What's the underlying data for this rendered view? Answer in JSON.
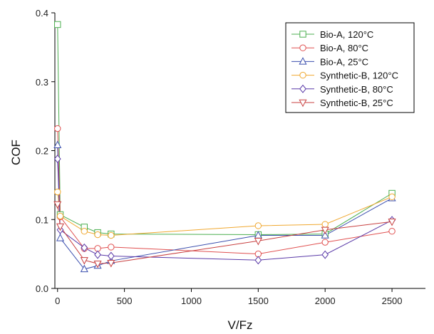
{
  "chart_data": {
    "type": "line",
    "xlabel": "V/Fz",
    "ylabel": "COF",
    "xlim": [
      -20,
      2750
    ],
    "ylim": [
      0,
      0.4
    ],
    "x_ticks": [
      0,
      500,
      1000,
      1500,
      2000,
      2500
    ],
    "x_tick_labels": [
      "0",
      "500",
      "1000",
      "1500",
      "2000",
      "2500"
    ],
    "y_ticks": [
      0.0,
      0.1,
      0.2,
      0.3,
      0.4
    ],
    "y_tick_labels": [
      "0.0",
      "0.1",
      "0.2",
      "0.3",
      "0.4"
    ],
    "grid": false,
    "legend_position": "top-right",
    "series": [
      {
        "name": "Bio-A, 120°C",
        "color": "#4caf50",
        "marker": "square",
        "x": [
          0,
          20,
          200,
          300,
          400,
          1500,
          2000,
          2500
        ],
        "y": [
          0.383,
          0.107,
          0.089,
          0.081,
          0.079,
          0.078,
          0.079,
          0.138
        ]
      },
      {
        "name": "Bio-A, 80°C",
        "color": "#e05050",
        "marker": "circle",
        "x": [
          0,
          20,
          200,
          300,
          400,
          1500,
          2000,
          2500
        ],
        "y": [
          0.232,
          0.104,
          0.058,
          0.058,
          0.06,
          0.05,
          0.067,
          0.083
        ]
      },
      {
        "name": "Bio-A, 25°C",
        "color": "#3b4fae",
        "marker": "triangle-up",
        "x": [
          0,
          20,
          200,
          300,
          400,
          1500,
          2000,
          2500
        ],
        "y": [
          0.208,
          0.073,
          0.028,
          0.033,
          0.04,
          0.077,
          0.077,
          0.131
        ]
      },
      {
        "name": "Synthetic-B, 120°C",
        "color": "#f0a830",
        "marker": "circle",
        "x": [
          0,
          20,
          200,
          300,
          400,
          1500,
          2000,
          2500
        ],
        "y": [
          0.14,
          0.105,
          0.083,
          0.078,
          0.077,
          0.091,
          0.093,
          0.133
        ]
      },
      {
        "name": "Synthetic-B, 80°C",
        "color": "#5a3aa8",
        "marker": "diamond",
        "x": [
          0,
          20,
          200,
          300,
          400,
          1500,
          2000,
          2500
        ],
        "y": [
          0.188,
          0.085,
          0.059,
          0.049,
          0.047,
          0.041,
          0.049,
          0.099
        ]
      },
      {
        "name": "Synthetic-B, 25°C",
        "color": "#c84040",
        "marker": "triangle-down",
        "x": [
          0,
          20,
          200,
          300,
          400,
          1500,
          2000,
          2500
        ],
        "y": [
          0.122,
          0.09,
          0.041,
          0.036,
          0.037,
          0.069,
          0.085,
          0.097
        ]
      }
    ]
  }
}
